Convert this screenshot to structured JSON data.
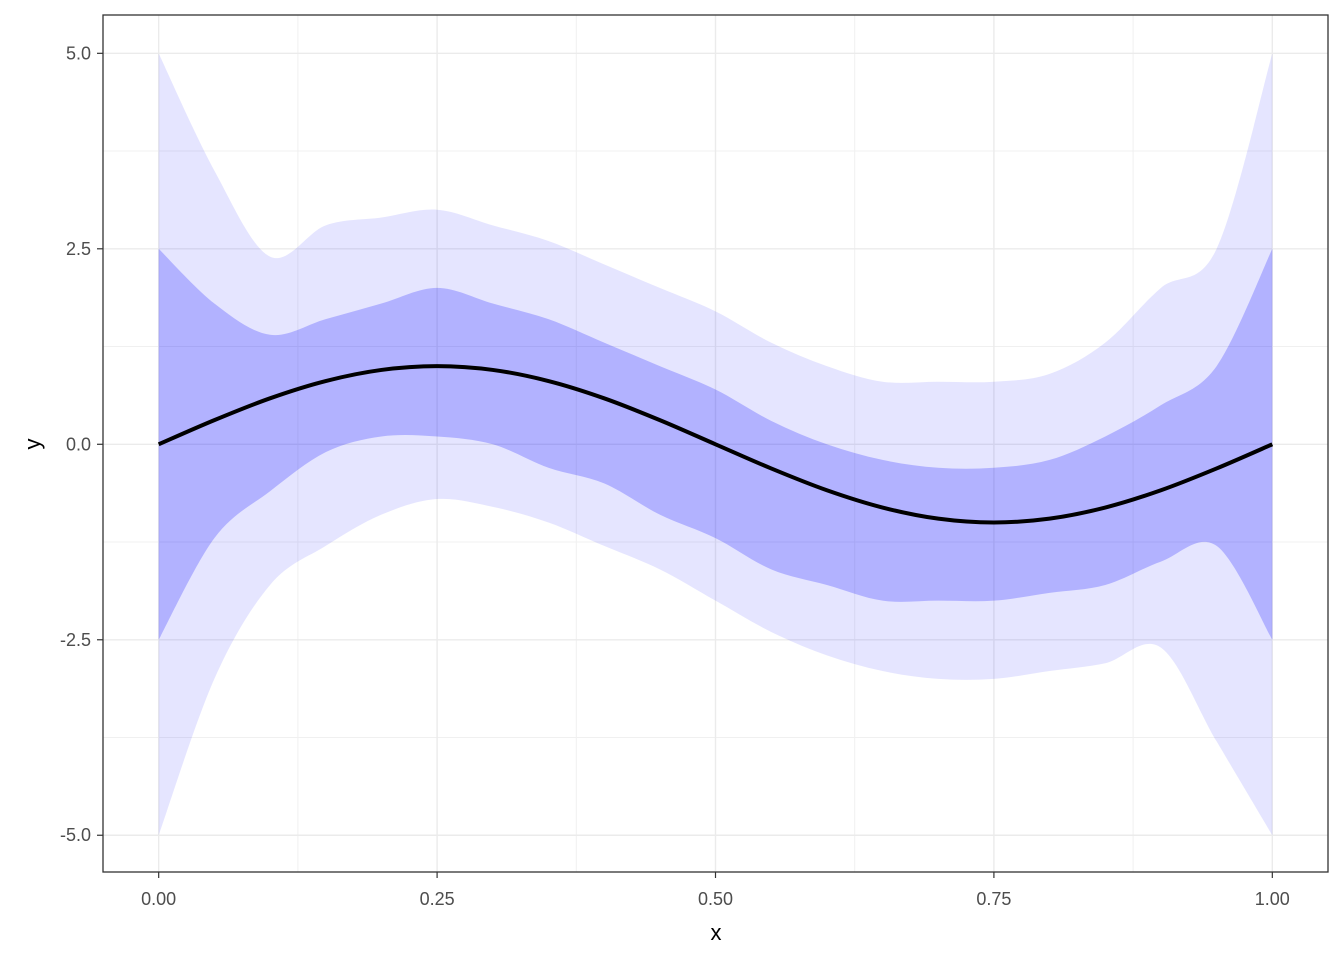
{
  "chart_data": {
    "type": "line",
    "x_label": "x",
    "y_label": "y",
    "xlim": [
      -0.05,
      1.05
    ],
    "ylim": [
      -5.47,
      5.49
    ],
    "xticks": [
      {
        "value": 0,
        "label": "0.00"
      },
      {
        "value": 0.25,
        "label": "0.25"
      },
      {
        "value": 0.5,
        "label": "0.50"
      },
      {
        "value": 0.75,
        "label": "0.75"
      },
      {
        "value": 1,
        "label": "1.00"
      }
    ],
    "yticks": [
      {
        "value": -5,
        "label": "-5.0"
      },
      {
        "value": -2.5,
        "label": "-2.5"
      },
      {
        "value": 0,
        "label": "0.0"
      },
      {
        "value": 2.5,
        "label": "2.5"
      },
      {
        "value": 5,
        "label": "5.0"
      }
    ],
    "grid": true,
    "x": [
      0,
      0.05,
      0.1,
      0.15,
      0.2,
      0.25,
      0.3,
      0.35,
      0.4,
      0.45,
      0.5,
      0.55,
      0.6,
      0.65,
      0.7,
      0.75,
      0.8,
      0.85,
      0.9,
      0.95,
      1
    ],
    "bands": [
      {
        "color": "#0000ff",
        "opacity": 0.1,
        "upper": [
          5.0,
          3.5,
          2.4,
          2.8,
          2.9,
          3.0,
          2.8,
          2.6,
          2.3,
          2.0,
          1.7,
          1.3,
          1.0,
          0.8,
          0.8,
          0.8,
          0.9,
          1.3,
          2.0,
          2.5,
          5.0
        ],
        "lower": [
          -5.0,
          -3.0,
          -1.8,
          -1.3,
          -0.9,
          -0.7,
          -0.8,
          -1.0,
          -1.3,
          -1.6,
          -2.0,
          -2.4,
          -2.7,
          -2.9,
          -3.0,
          -3.0,
          -2.9,
          -2.8,
          -2.6,
          -3.8,
          -5.0
        ]
      },
      {
        "color": "#0000ff",
        "opacity": 0.22,
        "upper": [
          2.5,
          1.8,
          1.4,
          1.6,
          1.8,
          2.0,
          1.8,
          1.6,
          1.3,
          1.0,
          0.7,
          0.3,
          0.0,
          -0.2,
          -0.3,
          -0.3,
          -0.2,
          0.1,
          0.5,
          1.0,
          2.5
        ],
        "lower": [
          -2.5,
          -1.2,
          -0.6,
          -0.1,
          0.1,
          0.1,
          0.0,
          -0.3,
          -0.5,
          -0.9,
          -1.2,
          -1.6,
          -1.8,
          -2.0,
          -2.0,
          -2.0,
          -1.9,
          -1.8,
          -1.5,
          -1.3,
          -2.5
        ]
      }
    ],
    "series": [
      {
        "color": "#000000",
        "values": [
          0,
          0.309,
          0.588,
          0.809,
          0.951,
          1,
          0.951,
          0.809,
          0.588,
          0.309,
          0,
          -0.309,
          -0.588,
          -0.809,
          -0.951,
          -1,
          -0.951,
          -0.809,
          -0.588,
          -0.309,
          0
        ]
      }
    ]
  }
}
